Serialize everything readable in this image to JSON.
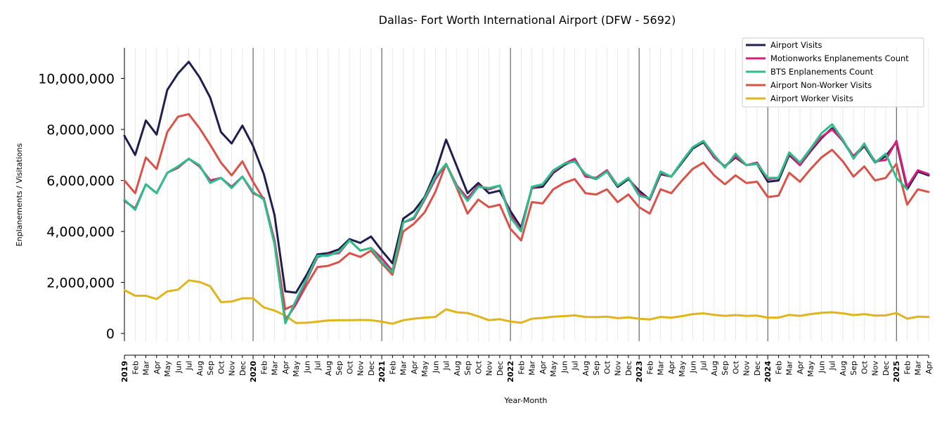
{
  "chart_data": {
    "type": "line",
    "title": "Dallas- Fort Worth International Airport (DFW - 5692)",
    "xlabel": "Year-Month",
    "ylabel": "Enplanements / Visitations",
    "ylim": [
      -300000,
      11200000
    ],
    "yticks": [
      0,
      2000000,
      4000000,
      6000000,
      8000000,
      10000000
    ],
    "ytick_labels": [
      "0",
      "2,000,000",
      "4,000,000",
      "6,000,000",
      "8,000,000",
      "10,000,000"
    ],
    "legend_position": "top-right",
    "grid": "vertical-monthly",
    "x": [
      "2019-01",
      "2019-02",
      "2019-03",
      "2019-04",
      "2019-05",
      "2019-06",
      "2019-07",
      "2019-08",
      "2019-09",
      "2019-10",
      "2019-11",
      "2019-12",
      "2020-01",
      "2020-02",
      "2020-03",
      "2020-04",
      "2020-05",
      "2020-06",
      "2020-07",
      "2020-08",
      "2020-09",
      "2020-10",
      "2020-11",
      "2020-12",
      "2021-01",
      "2021-02",
      "2021-03",
      "2021-04",
      "2021-05",
      "2021-06",
      "2021-07",
      "2021-08",
      "2021-09",
      "2021-10",
      "2021-11",
      "2021-12",
      "2022-01",
      "2022-02",
      "2022-03",
      "2022-04",
      "2022-05",
      "2022-06",
      "2022-07",
      "2022-08",
      "2022-09",
      "2022-10",
      "2022-11",
      "2022-12",
      "2023-01",
      "2023-02",
      "2023-03",
      "2023-04",
      "2023-05",
      "2023-06",
      "2023-07",
      "2023-08",
      "2023-09",
      "2023-10",
      "2023-11",
      "2023-12",
      "2024-01",
      "2024-02",
      "2024-03",
      "2024-04",
      "2024-05",
      "2024-06",
      "2024-07",
      "2024-08",
      "2024-09",
      "2024-10",
      "2024-11",
      "2024-12",
      "2025-01",
      "2025-02",
      "2025-03",
      "2025-04"
    ],
    "month_labels": [
      "2019",
      "Feb",
      "Mar",
      "Apr",
      "May",
      "Jun",
      "Jul",
      "Aug",
      "Sep",
      "Oct",
      "Nov",
      "Dec",
      "2020",
      "Feb",
      "Mar",
      "Apr",
      "May",
      "Jun",
      "Jul",
      "Aug",
      "Sep",
      "Oct",
      "Nov",
      "Dec",
      "2021",
      "Feb",
      "Mar",
      "Apr",
      "May",
      "Jun",
      "Jul",
      "Aug",
      "Sep",
      "Oct",
      "Nov",
      "Dec",
      "2022",
      "Feb",
      "Mar",
      "Apr",
      "May",
      "Jun",
      "Jul",
      "Aug",
      "Sep",
      "Oct",
      "Nov",
      "Dec",
      "2023",
      "Feb",
      "Mar",
      "Apr",
      "May",
      "Jun",
      "Jul",
      "Aug",
      "Sep",
      "Oct",
      "Nov",
      "Dec",
      "2024",
      "Feb",
      "Mar",
      "Apr",
      "May",
      "Jun",
      "Jul",
      "Aug",
      "Sep",
      "Oct",
      "Nov",
      "Dec",
      "2025",
      "Feb",
      "Mar",
      "Apr"
    ],
    "series": [
      {
        "name": "Airport Visits",
        "color": "#1f1f4f",
        "values": [
          7750000,
          7000000,
          8350000,
          7800000,
          9550000,
          10200000,
          10650000,
          10050000,
          9250000,
          7900000,
          7450000,
          8150000,
          7350000,
          6250000,
          4650000,
          1650000,
          1600000,
          2300000,
          3100000,
          3150000,
          3300000,
          3700000,
          3550000,
          3800000,
          3250000,
          2750000,
          4500000,
          4800000,
          5350000,
          6300000,
          7600000,
          6550000,
          5500000,
          5900000,
          5500000,
          5600000,
          4800000,
          4150000,
          5700000,
          5750000,
          6300000,
          6600000,
          6800000,
          6200000,
          6050000,
          6350000,
          5750000,
          6050000,
          5600000,
          5250000,
          6250000,
          6150000,
          6700000,
          7250000,
          7500000,
          6900000,
          6550000,
          6900000,
          6600000,
          6650000,
          5950000,
          6000000,
          7000000,
          6600000,
          7150000,
          7650000,
          8050000,
          7550000,
          6900000,
          7350000,
          6700000,
          6950000,
          7500000,
          5650000,
          6350000,
          6200000
        ]
      },
      {
        "name": "Motionworks Enplanements Count",
        "color": "#d4207a",
        "values": [
          5200000,
          4900000,
          5850000,
          5500000,
          6300000,
          6500000,
          6850000,
          6550000,
          6000000,
          6100000,
          5750000,
          6150000,
          5500000,
          5300000,
          3600000,
          500000,
          1150000,
          2100000,
          3000000,
          3100000,
          3150000,
          3650000,
          3250000,
          3350000,
          2950000,
          2450000,
          4350000,
          4500000,
          5250000,
          6050000,
          6650000,
          5800000,
          5300000,
          5800000,
          5650000,
          5800000,
          4650000,
          4050000,
          5700000,
          5850000,
          6350000,
          6650000,
          6850000,
          6150000,
          6100000,
          6400000,
          5800000,
          6100000,
          5500000,
          5250000,
          6300000,
          6150000,
          6750000,
          7300000,
          7550000,
          6900000,
          6550000,
          6950000,
          6600000,
          6700000,
          6050000,
          6100000,
          7050000,
          6600000,
          7200000,
          7700000,
          8000000,
          7550000,
          6950000,
          7400000,
          6750000,
          6800000,
          7550000,
          5750000,
          6400000,
          6250000
        ]
      },
      {
        "name": "BTS Enplanements Count",
        "color": "#2bbf8a",
        "values": [
          5250000,
          4850000,
          5850000,
          5500000,
          6300000,
          6550000,
          6850000,
          6600000,
          5900000,
          6100000,
          5700000,
          6150000,
          5550000,
          5250000,
          3500000,
          400000,
          1300000,
          2150000,
          3050000,
          3050000,
          3200000,
          3650000,
          3250000,
          3350000,
          2800000,
          2400000,
          4350000,
          4550000,
          5300000,
          6150000,
          6650000,
          5750000,
          5200000,
          5750000,
          5700000,
          5800000,
          4550000,
          4000000,
          5750000,
          5850000,
          6400000,
          6650000,
          6750000,
          6250000,
          6050000,
          6350000,
          5800000,
          6100000,
          5400000,
          5300000,
          6350000,
          6150000,
          6750000,
          7300000,
          7550000,
          7000000,
          6500000,
          7050000,
          6600000,
          6650000,
          6100000,
          6100000,
          7100000,
          6700000,
          7250000,
          7850000,
          8200000,
          7600000,
          6850000,
          7450000,
          6700000,
          7050000,
          6100000,
          5650000,
          null,
          null
        ]
      },
      {
        "name": "Airport Non-Worker Visits",
        "color": "#d9524a",
        "values": [
          6000000,
          5500000,
          6900000,
          6450000,
          7900000,
          8500000,
          8600000,
          8050000,
          7400000,
          6700000,
          6200000,
          6750000,
          5950000,
          5250000,
          3650000,
          950000,
          1150000,
          1900000,
          2600000,
          2650000,
          2800000,
          3150000,
          3000000,
          3250000,
          2750000,
          2300000,
          4000000,
          4300000,
          4750000,
          5550000,
          6650000,
          5700000,
          4700000,
          5250000,
          4950000,
          5050000,
          4100000,
          3650000,
          5150000,
          5100000,
          5650000,
          5900000,
          6050000,
          5500000,
          5450000,
          5650000,
          5150000,
          5450000,
          4950000,
          4700000,
          5650000,
          5500000,
          6000000,
          6450000,
          6700000,
          6200000,
          5850000,
          6200000,
          5900000,
          5950000,
          5350000,
          5400000,
          6300000,
          5950000,
          6450000,
          6900000,
          7200000,
          6750000,
          6150000,
          6550000,
          6000000,
          6100000,
          6650000,
          5050000,
          5650000,
          5550000
        ]
      },
      {
        "name": "Airport Worker Visits",
        "color": "#dfb51a",
        "values": [
          1700000,
          1480000,
          1480000,
          1350000,
          1650000,
          1720000,
          2080000,
          2020000,
          1850000,
          1230000,
          1250000,
          1380000,
          1380000,
          1020000,
          900000,
          700000,
          410000,
          420000,
          460000,
          510000,
          520000,
          520000,
          530000,
          520000,
          460000,
          380000,
          520000,
          580000,
          620000,
          650000,
          950000,
          830000,
          800000,
          670000,
          520000,
          560000,
          470000,
          420000,
          580000,
          610000,
          660000,
          680000,
          710000,
          650000,
          640000,
          660000,
          600000,
          630000,
          580000,
          550000,
          650000,
          620000,
          680000,
          760000,
          790000,
          730000,
          690000,
          720000,
          690000,
          700000,
          620000,
          620000,
          730000,
          690000,
          760000,
          810000,
          830000,
          790000,
          720000,
          760000,
          700000,
          710000,
          800000,
          580000,
          660000,
          650000
        ]
      }
    ]
  }
}
